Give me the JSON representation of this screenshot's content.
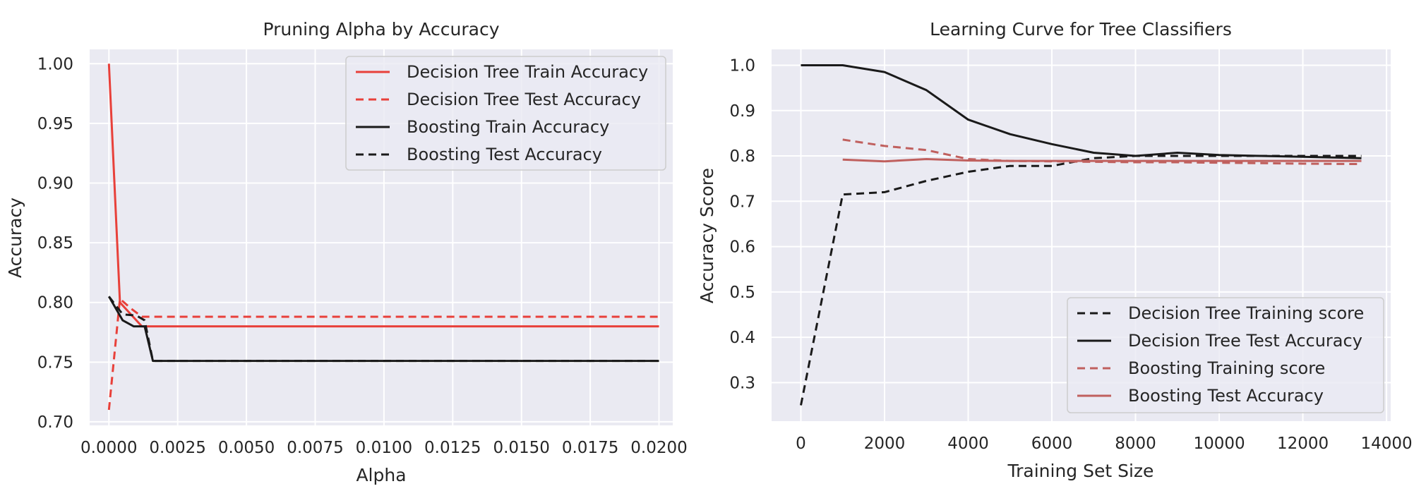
{
  "chart_data": [
    {
      "type": "line",
      "title": "Pruning Alpha by Accuracy",
      "xlabel": "Alpha",
      "ylabel": "Accuracy",
      "xlim": [
        -0.0007,
        0.0205
      ],
      "ylim": [
        0.697,
        1.012
      ],
      "xticks": [
        0.0,
        0.0025,
        0.005,
        0.0075,
        0.01,
        0.0125,
        0.015,
        0.0175,
        0.02
      ],
      "xtick_labels": [
        "0.0000",
        "0.0025",
        "0.0050",
        "0.0075",
        "0.0100",
        "0.0125",
        "0.0150",
        "0.0175",
        "0.0200"
      ],
      "yticks": [
        0.7,
        0.75,
        0.8,
        0.85,
        0.9,
        0.95,
        1.0
      ],
      "ytick_labels": [
        "0.70",
        "0.75",
        "0.80",
        "0.85",
        "0.90",
        "0.95",
        "1.00"
      ],
      "grid": true,
      "legend_position": "top-right",
      "series": [
        {
          "name": "Decision Tree Train Accuracy",
          "color": "#e8403a",
          "dash": "solid",
          "x": [
            0.0,
            0.0004,
            0.0008,
            0.0012,
            0.02
          ],
          "y": [
            1.0,
            0.8,
            0.79,
            0.78,
            0.78
          ]
        },
        {
          "name": "Decision Tree Test Accuracy",
          "color": "#e8403a",
          "dash": "dashed",
          "x": [
            0.0,
            0.0004,
            0.0008,
            0.0012,
            0.02
          ],
          "y": [
            0.71,
            0.803,
            0.795,
            0.788,
            0.788
          ]
        },
        {
          "name": "Boosting Train Accuracy",
          "color": "#1a1a1a",
          "dash": "solid",
          "x": [
            0.0,
            0.0005,
            0.0009,
            0.0013,
            0.0016,
            0.02
          ],
          "y": [
            0.805,
            0.785,
            0.78,
            0.78,
            0.751,
            0.751
          ]
        },
        {
          "name": "Boosting Test Accuracy",
          "color": "#1a1a1a",
          "dash": "dashed",
          "x": [
            0.0,
            0.0005,
            0.001,
            0.0013,
            0.0016,
            0.02
          ],
          "y": [
            0.805,
            0.79,
            0.789,
            0.785,
            0.751,
            0.751
          ]
        }
      ]
    },
    {
      "type": "line",
      "title": "Learning Curve for Tree Classifiers",
      "xlabel": "Training Set Size",
      "ylabel": "Accuracy Score",
      "xlim": [
        -700,
        14100
      ],
      "ylim": [
        0.215,
        1.035
      ],
      "xticks": [
        0,
        2000,
        4000,
        6000,
        8000,
        10000,
        12000,
        14000
      ],
      "xtick_labels": [
        "0",
        "2000",
        "4000",
        "6000",
        "8000",
        "10000",
        "12000",
        "14000"
      ],
      "yticks": [
        0.3,
        0.4,
        0.5,
        0.6,
        0.7,
        0.8,
        0.9,
        1.0
      ],
      "ytick_labels": [
        "0.3",
        "0.4",
        "0.5",
        "0.6",
        "0.7",
        "0.8",
        "0.9",
        "1.0"
      ],
      "grid": true,
      "legend_position": "bottom-right",
      "series": [
        {
          "name": "Decision Tree Training score",
          "color": "#1a1a1a",
          "dash": "dashed",
          "x": [
            0,
            1000,
            2000,
            3000,
            4000,
            5000,
            6000,
            7000,
            8000,
            9000,
            10000,
            11000,
            12000,
            13400
          ],
          "y": [
            0.25,
            0.715,
            0.72,
            0.745,
            0.765,
            0.778,
            0.778,
            0.795,
            0.8,
            0.8,
            0.8,
            0.8,
            0.8,
            0.8
          ]
        },
        {
          "name": "Decision Tree Test Accuracy",
          "color": "#1a1a1a",
          "dash": "solid",
          "x": [
            0,
            1000,
            2000,
            3000,
            4000,
            5000,
            6000,
            7000,
            8000,
            9000,
            10000,
            11000,
            12000,
            13400
          ],
          "y": [
            1.0,
            1.0,
            0.985,
            0.945,
            0.88,
            0.848,
            0.826,
            0.807,
            0.8,
            0.807,
            0.802,
            0.8,
            0.798,
            0.795
          ]
        },
        {
          "name": "Boosting Training score",
          "color": "#c0605e",
          "dash": "dashed",
          "x": [
            1000,
            2000,
            3000,
            4000,
            5000,
            6000,
            7000,
            8000,
            9000,
            10000,
            11000,
            12000,
            13400
          ],
          "y": [
            0.836,
            0.822,
            0.813,
            0.793,
            0.789,
            0.788,
            0.787,
            0.786,
            0.786,
            0.785,
            0.784,
            0.783,
            0.782
          ]
        },
        {
          "name": "Boosting Test Accuracy",
          "color": "#c0605e",
          "dash": "solid",
          "x": [
            1000,
            2000,
            3000,
            4000,
            5000,
            6000,
            7000,
            8000,
            9000,
            10000,
            11000,
            12000,
            13400
          ],
          "y": [
            0.792,
            0.788,
            0.793,
            0.79,
            0.789,
            0.789,
            0.789,
            0.789,
            0.789,
            0.789,
            0.789,
            0.789,
            0.789
          ]
        }
      ]
    }
  ]
}
